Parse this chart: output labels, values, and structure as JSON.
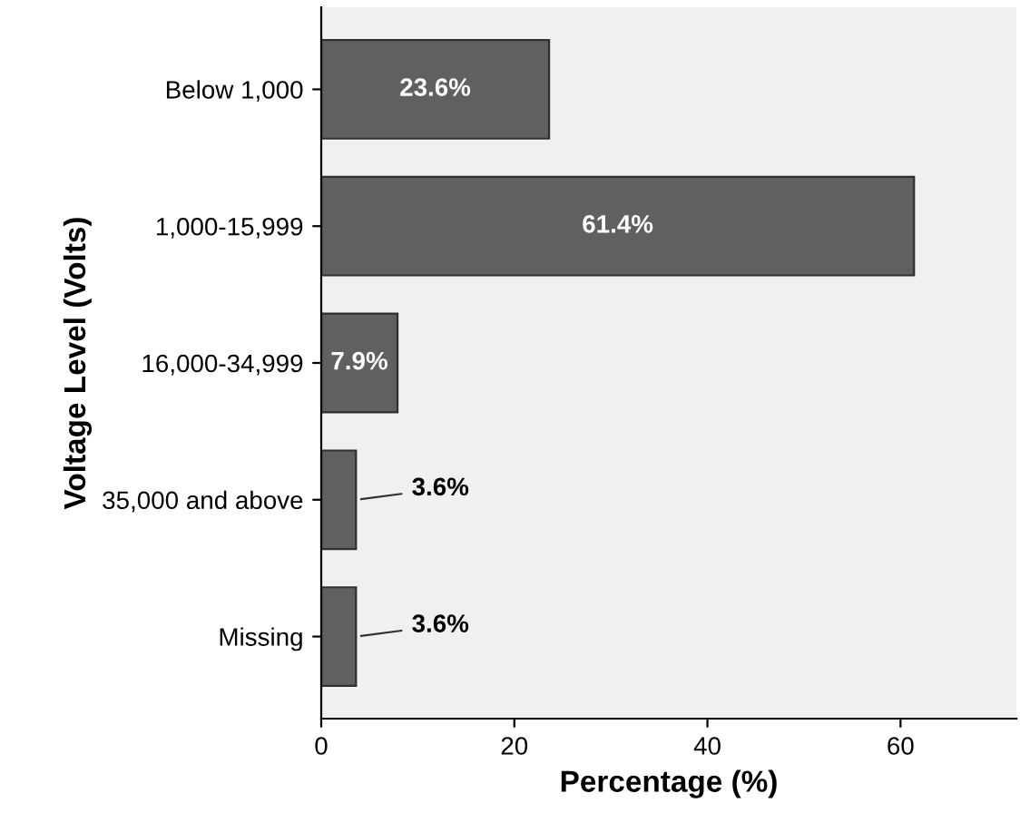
{
  "chart_data": {
    "type": "bar",
    "orientation": "horizontal",
    "xlabel": "Percentage (%)",
    "ylabel": "Voltage Level (Volts)",
    "categories": [
      "Below 1,000",
      "1,000-15,999",
      "16,000-34,999",
      "35,000 and above",
      "Missing"
    ],
    "values": [
      23.6,
      61.4,
      7.9,
      3.6,
      3.6
    ],
    "value_labels": [
      "23.6%",
      "61.4%",
      "7.9%",
      "3.6%",
      "3.6%"
    ],
    "color": "#606060",
    "xlim": [
      0,
      72
    ],
    "xticks": [
      0,
      20,
      40,
      60
    ],
    "grid": false
  }
}
